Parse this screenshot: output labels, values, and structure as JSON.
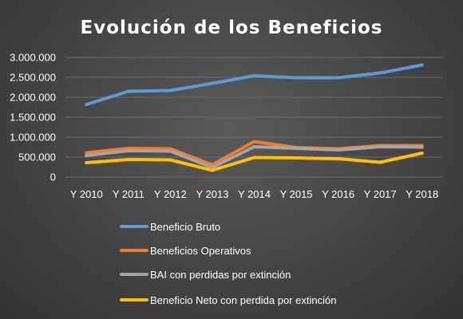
{
  "chart_data": {
    "type": "line",
    "title": "Evolución de los Beneficios",
    "xlabel": "",
    "ylabel": "",
    "categories": [
      "Y 2010",
      "Y 2011",
      "Y 2012",
      "Y 2013",
      "Y 2014",
      "Y 2015",
      "Y 2016",
      "Y 2017",
      "Y 2018"
    ],
    "ylim": [
      0,
      3000000
    ],
    "yticks": [
      0,
      500000,
      1000000,
      1500000,
      2000000,
      2500000,
      3000000
    ],
    "ytick_labels": [
      "0",
      "500.000",
      "1.000.000",
      "1.500.000",
      "2.000.000",
      "2.500.000",
      "3.000.000"
    ],
    "grid": true,
    "legend_position": "bottom",
    "series": [
      {
        "name": "Beneficio Bruto",
        "color": "#5B9BD5",
        "values": [
          1820000,
          2150000,
          2170000,
          2350000,
          2540000,
          2490000,
          2490000,
          2610000,
          2810000
        ]
      },
      {
        "name": "Beneficios Operativos",
        "color": "#ED7D31",
        "values": [
          610000,
          720000,
          710000,
          310000,
          890000,
          740000,
          710000,
          790000,
          790000
        ]
      },
      {
        "name": "BAI con perdidas por extinción",
        "color": "#A5A5A5",
        "values": [
          540000,
          660000,
          650000,
          240000,
          760000,
          720000,
          680000,
          760000,
          750000
        ]
      },
      {
        "name": "Beneficio Neto con perdida por extinción",
        "color": "#FFC000",
        "values": [
          360000,
          440000,
          430000,
          170000,
          490000,
          480000,
          460000,
          370000,
          600000
        ]
      }
    ]
  }
}
